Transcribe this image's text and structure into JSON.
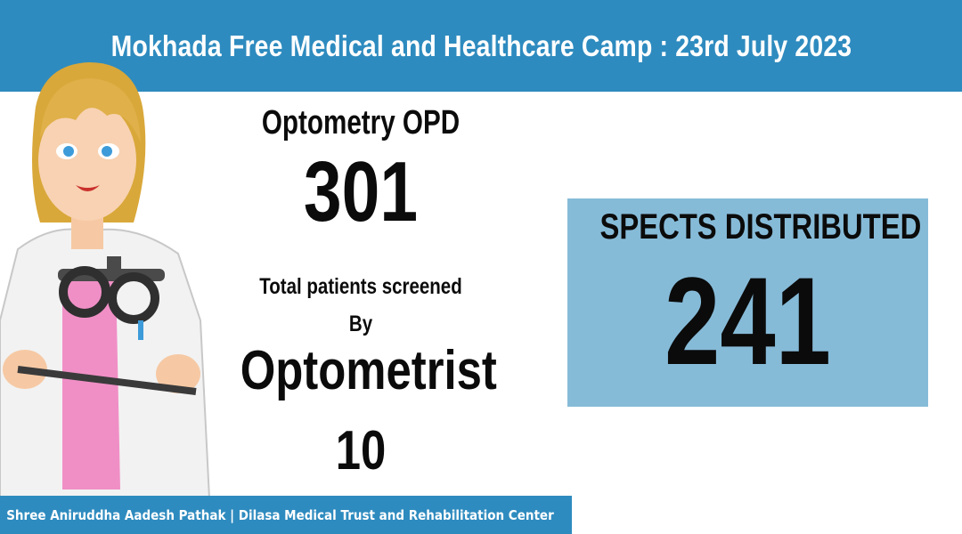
{
  "header": {
    "title": "Mokhada Free Medical and Healthcare Camp : 23rd July 2023"
  },
  "opd": {
    "label": "Optometry OPD",
    "value": "301"
  },
  "screening": {
    "line1": "Total patients screened",
    "line2": "By",
    "line3": "Optometrist",
    "value": "10"
  },
  "spects": {
    "label": "SPECTS DISTRIBUTED",
    "value": "241"
  },
  "footer": {
    "text": "Shree Aniruddha Aadesh Pathak | Dilasa Medical Trust and Rehabilitation Center"
  },
  "illustration": {
    "icon": "optometrist-holding-trial-frame-icon"
  },
  "colors": {
    "banner": "#2e8bbf",
    "box": "#86bbd8",
    "text": "#0b0b0b"
  }
}
